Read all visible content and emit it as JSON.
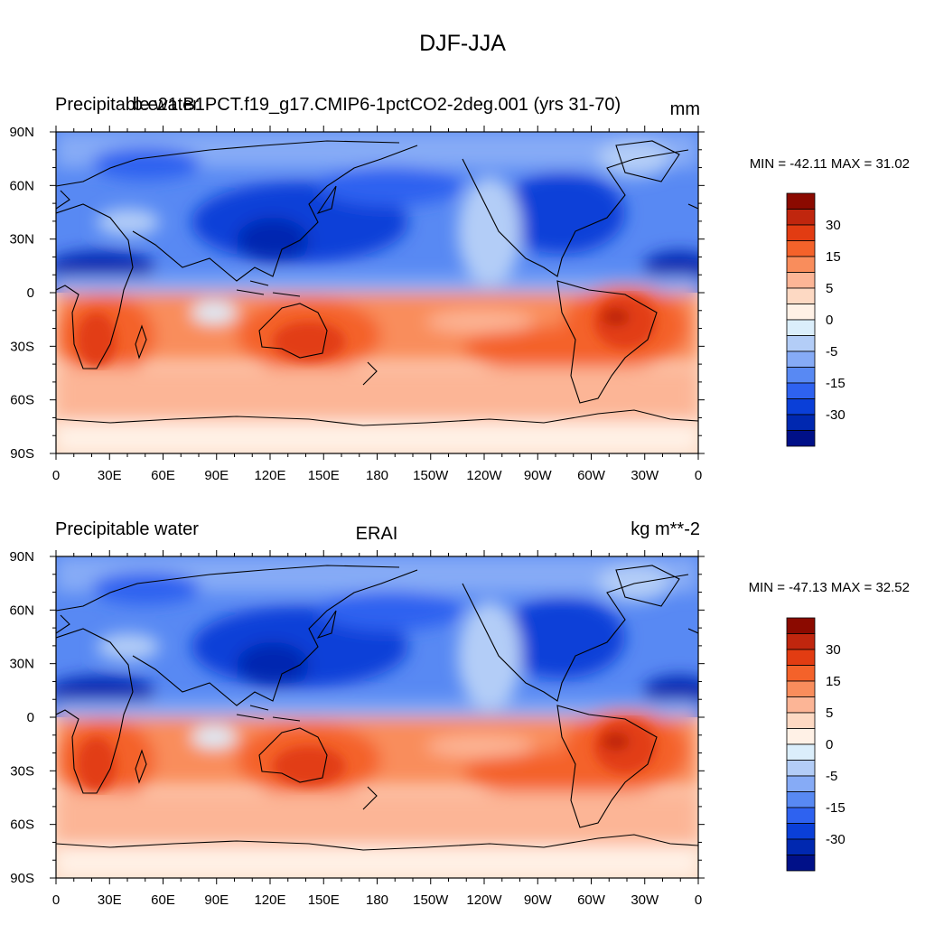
{
  "figure": {
    "title": "DJF-JJA"
  },
  "colorbar_levels": [
    "30",
    "15",
    "5",
    "0",
    "-5",
    "-15",
    "-30"
  ],
  "colorbar_colors": [
    "#8b0a00",
    "#c0260e",
    "#e23c12",
    "#f4622a",
    "#f98d5c",
    "#fcb596",
    "#fdd9c3",
    "#fff1e6",
    "#dbeefb",
    "#b3cdf7",
    "#86abf6",
    "#5889f3",
    "#2e62f0",
    "#0a3fd8",
    "#0028b0",
    "#001088"
  ],
  "chart_data": [
    {
      "type": "heatmap",
      "left_title": "Precipitable water",
      "center_title": "b.e21.B1PCT.f19_g17.CMIP6-1pctCO2-2deg.001 (yrs 31-70)",
      "units": "mm",
      "stats_text": "MIN = -42.11 MAX =  31.02",
      "min": -42.11,
      "max": 31.02,
      "x_ticks": [
        "0",
        "30E",
        "60E",
        "90E",
        "120E",
        "150E",
        "180",
        "150W",
        "120W",
        "90W",
        "60W",
        "30W",
        "0"
      ],
      "y_ticks": [
        "90N",
        "60N",
        "30N",
        "0",
        "30S",
        "60S",
        "90S"
      ],
      "xlim": [
        0,
        360
      ],
      "ylim": [
        -90,
        90
      ]
    },
    {
      "type": "heatmap",
      "left_title": "Precipitable water",
      "center_title": "ERAI",
      "units": "kg m**-2",
      "stats_text": "MIN = -47.13 MAX =  32.52",
      "min": -47.13,
      "max": 32.52,
      "x_ticks": [
        "0",
        "30E",
        "60E",
        "90E",
        "120E",
        "150E",
        "180",
        "150W",
        "120W",
        "90W",
        "60W",
        "30W",
        "0"
      ],
      "y_ticks": [
        "90N",
        "60N",
        "30N",
        "0",
        "30S",
        "60S",
        "90S"
      ],
      "xlim": [
        0,
        360
      ],
      "ylim": [
        -90,
        90
      ]
    }
  ]
}
